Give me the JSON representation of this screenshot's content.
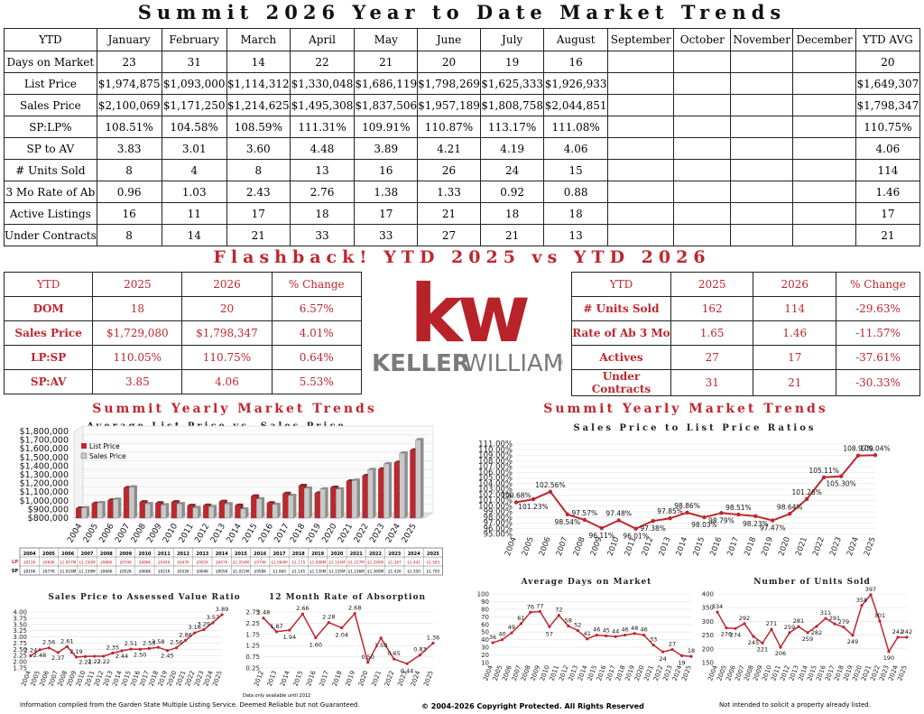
{
  "title": "Summit 2026 Year to Date Market Trends",
  "ytd_table": {
    "header": [
      "YTD",
      "January",
      "February",
      "March",
      "April",
      "May",
      "June",
      "July",
      "August",
      "September",
      "October",
      "November",
      "December",
      "YTD AVG"
    ],
    "rows": [
      [
        "Days on Market",
        "23",
        "31",
        "14",
        "22",
        "21",
        "20",
        "19",
        "16",
        "",
        "",
        "",
        "",
        "20"
      ],
      [
        "List Price",
        "$1,974,875",
        "$1,093,000",
        "$1,114,312",
        "$1,330,048",
        "$1,686,119",
        "$1,798,269",
        "$1,625,333",
        "$1,926,933",
        "",
        "",
        "",
        "",
        "$1,649,307"
      ],
      [
        "Sales Price",
        "$2,100,069",
        "$1,171,250",
        "$1,214,625",
        "$1,495,308",
        "$1,837,506",
        "$1,957,189",
        "$1,808,758",
        "$2,044,851",
        "",
        "",
        "",
        "",
        "$1,798,347"
      ],
      [
        "SP:LP%",
        "108.51%",
        "104.58%",
        "108.59%",
        "111.31%",
        "109.91%",
        "110.87%",
        "113.17%",
        "111.08%",
        "",
        "",
        "",
        "",
        "110.75%"
      ],
      [
        "SP to AV",
        "3.83",
        "3.01",
        "3.60",
        "4.48",
        "3.89",
        "4.21",
        "4.19",
        "4.06",
        "",
        "",
        "",
        "",
        "4.06"
      ],
      [
        "# Units Sold",
        "8",
        "4",
        "8",
        "13",
        "16",
        "26",
        "24",
        "15",
        "",
        "",
        "",
        "",
        "114"
      ],
      [
        "3 Mo Rate of Ab",
        "0.96",
        "1.03",
        "2.43",
        "2.76",
        "1.38",
        "1.33",
        "0.92",
        "0.88",
        "",
        "",
        "",
        "",
        "1.46"
      ],
      [
        "Active Listings",
        "16",
        "11",
        "17",
        "18",
        "17",
        "21",
        "18",
        "18",
        "",
        "",
        "",
        "",
        "17"
      ],
      [
        "Under Contracts",
        "8",
        "14",
        "21",
        "33",
        "33",
        "27",
        "21",
        "13",
        "",
        "",
        "",
        "",
        "21"
      ]
    ]
  },
  "flashback_title": "Flashback!  YTD 2025 vs YTD 2026",
  "compare_left": {
    "header": [
      "YTD",
      "2025",
      "2026",
      "% Change"
    ],
    "rows": [
      [
        "DOM",
        "18",
        "20",
        "6.57%"
      ],
      [
        "Sales Price",
        "$1,729,080",
        "$1,798,347",
        "4.01%"
      ],
      [
        "LP:SP",
        "110.05%",
        "110.75%",
        "0.64%"
      ],
      [
        "SP:AV",
        "3.85",
        "4.06",
        "5.53%"
      ]
    ]
  },
  "compare_right": {
    "header": [
      "YTD",
      "2025",
      "2026",
      "% Change"
    ],
    "rows": [
      [
        "# Units Sold",
        "162",
        "114",
        "-29.63%"
      ],
      [
        "Rate of Ab 3 Mo",
        "1.65",
        "1.46",
        "-11.57%"
      ],
      [
        "Actives",
        "27",
        "17",
        "-37.61%"
      ],
      [
        "Under Contracts",
        "31",
        "21",
        "-30.33%"
      ]
    ]
  },
  "logo": {
    "kw": "kw",
    "brand_left": "KELLER",
    "brand_right": "WILLIAMS",
    "mark": "®"
  },
  "section_left": "Summit Yearly Market Trends",
  "section_right": "Summit Yearly Market Trends",
  "colors": {
    "red": "#c0262d",
    "gray": "#c8c8c8",
    "dark": "#555555"
  },
  "chart_data": [
    {
      "id": "avg-price",
      "type": "bar",
      "title": "Average List Price vs. Sales Price",
      "categories": [
        "2004",
        "2005",
        "2006",
        "2007",
        "2008",
        "2009",
        "2010",
        "2011",
        "2012",
        "2013",
        "2014",
        "2015",
        "2016",
        "2017",
        "2018",
        "2019",
        "2020",
        "2021",
        "2022",
        "2023",
        "2024",
        "2025"
      ],
      "series": [
        {
          "name": "List Price",
          "values": [
            913000,
            969000,
            1007000,
            1150000,
            986000,
            974000,
            986000,
            945000,
            947000,
            991000,
            947000,
            1054000,
            974000,
            1084000,
            1175000,
            1088000,
            1154000,
            1227000,
            1289000,
            1367000,
            1442000,
            1585000
          ]
        },
        {
          "name": "Sales Price",
          "values": [
            919000,
            977000,
            1018000,
            1159000,
            966000,
            952000,
            966000,
            921000,
            932000,
            964000,
            905000,
            1021000,
            958000,
            1060000,
            1145000,
            1135000,
            1135000,
            1236000,
            1360000,
            1426000,
            1550000,
            1705000
          ]
        }
      ],
      "y_tick_labels": [
        "$800,000",
        "$900,000",
        "$1,000,000",
        "$1,100,000",
        "$1,200,000",
        "$1,300,000",
        "$1,400,000",
        "$1,500,000",
        "$1,600,000",
        "$1,700,000",
        "$1,800,000"
      ],
      "ylim": [
        800000,
        1800000
      ],
      "legend": "top-left"
    },
    {
      "id": "sp-lp",
      "type": "line",
      "title": "Sales Price to List Price Ratios",
      "x": [
        "2004",
        "2005",
        "2006",
        "2007",
        "2008",
        "2009",
        "2010",
        "2011",
        "2012",
        "2013",
        "2014",
        "2015",
        "2016",
        "2017",
        "2018",
        "2019",
        "2020",
        "2021",
        "2022",
        "2023",
        "2024",
        "2025"
      ],
      "values": [
        100.68,
        101.23,
        102.56,
        98.54,
        97.57,
        96.11,
        97.48,
        96.01,
        97.38,
        97.85,
        98.86,
        98.03,
        98.79,
        98.51,
        98.23,
        97.47,
        98.64,
        101.26,
        105.11,
        105.3,
        108.97,
        109.04
      ],
      "data_labels": [
        "100.68%",
        "101.23%",
        "102.56%",
        "98.54%",
        "97.57%",
        "96.11%",
        "97.48%",
        "96.01%",
        "97.38%",
        "97.85%",
        "98.86%",
        "98.03%",
        "98.79%",
        "98.51%",
        "98.23%",
        "97.47%",
        "98.64%",
        "101.26%",
        "105.11%",
        "105.30%",
        "108.97%",
        "109.04%"
      ],
      "y_tick_labels": [
        "95.00%",
        "96.00%",
        "97.00%",
        "98.00%",
        "99.00%",
        "100.00%",
        "101.00%",
        "102.00%",
        "103.00%",
        "104.00%",
        "105.00%",
        "106.00%",
        "107.00%",
        "108.00%",
        "109.00%",
        "110.00%",
        "111.00%"
      ],
      "ylim": [
        95,
        111
      ]
    },
    {
      "id": "sp-av",
      "type": "line",
      "title": "Sales Price to Assessed Value Ratio",
      "x": [
        "2004",
        "2005",
        "2006",
        "2007",
        "2008",
        "2009",
        "2010",
        "2011",
        "2012",
        "2013",
        "2014",
        "2015",
        "2016",
        "2017",
        "2018",
        "2019",
        "2020",
        "2021",
        "2022",
        "2023",
        "2024",
        "2025"
      ],
      "values": [
        2.24,
        2.48,
        2.56,
        2.37,
        2.61,
        2.19,
        2.21,
        2.22,
        2.22,
        2.35,
        2.44,
        2.51,
        2.5,
        2.53,
        2.58,
        2.45,
        2.56,
        2.86,
        3.16,
        3.29,
        3.57,
        3.89
      ],
      "data_labels": [
        "2.24",
        "2.48",
        "2.56",
        "2.37",
        "2.61",
        "2.19",
        "2.21",
        "2.22",
        "2.22",
        "2.35",
        "2.44",
        "2.51",
        "2.50",
        "2.53",
        "2.58",
        "2.45",
        "2.56",
        "2.86",
        "3.16",
        "3.29",
        "3.57",
        "3.89"
      ],
      "y_tick_labels": [
        "1.75",
        "2.00",
        "2.25",
        "2.50",
        "2.75",
        "3.00",
        "3.25",
        "3.50",
        "3.75",
        "4.00"
      ],
      "ylim": [
        1.75,
        4.0
      ]
    },
    {
      "id": "rate-ab",
      "type": "line",
      "title": "12 Month Rate of Absorption",
      "x": [
        "2012",
        "2013",
        "2014",
        "2015",
        "2016",
        "2017",
        "2018",
        "2019",
        "2020",
        "2021",
        "2022",
        "2023",
        "2024",
        "2025"
      ],
      "values": [
        2.48,
        1.87,
        1.94,
        2.66,
        1.6,
        2.28,
        2.04,
        2.68,
        0.5,
        1.59,
        0.65,
        0.44,
        0.83,
        1.36
      ],
      "data_labels": [
        "2.48",
        "1.87",
        "1.94",
        "2.66",
        "1.60",
        "2.28",
        "2.04",
        "2.68",
        "0.50",
        "1.59",
        "0.65",
        "0.44",
        "0.83",
        "1.36"
      ],
      "y_tick_labels": [
        "0.25",
        "0.75",
        "1.25",
        "1.75",
        "2.25",
        "2.75"
      ],
      "ylim": [
        0.25,
        2.75
      ],
      "note": "Data only available until 2012"
    },
    {
      "id": "avg-dom",
      "type": "line",
      "title": "Average Days on Market",
      "x": [
        "2004",
        "2005",
        "2006",
        "2007",
        "2008",
        "2009",
        "2010",
        "2011",
        "2012",
        "2013",
        "2014",
        "2015",
        "2016",
        "2017",
        "2018",
        "2019",
        "2020",
        "2021",
        "2022",
        "2023",
        "2024",
        "2025"
      ],
      "values": [
        36,
        40,
        49,
        61,
        76,
        77,
        57,
        72,
        58,
        52,
        41,
        46,
        45,
        44,
        46,
        48,
        46,
        33,
        24,
        27,
        19,
        18
      ],
      "data_labels": [
        "36",
        "40",
        "49",
        "61",
        "76",
        "77",
        "57",
        "72",
        "58",
        "52",
        "41",
        "46",
        "45",
        "44",
        "46",
        "48",
        "46",
        "33",
        "24",
        "27",
        "19",
        "18"
      ],
      "y_tick_labels": [
        "10",
        "20",
        "30",
        "40",
        "50",
        "60",
        "70",
        "80",
        "90",
        "100"
      ],
      "ylim": [
        10,
        100
      ]
    },
    {
      "id": "units-sold",
      "type": "line",
      "title": "Number of Units Sold",
      "x": [
        "2004",
        "2005",
        "2006",
        "2007",
        "2008",
        "2009",
        "2010",
        "2011",
        "2012",
        "2013",
        "2014",
        "2015",
        "2016",
        "2017",
        "2018",
        "2019",
        "2020",
        "2021",
        "2022",
        "2023",
        "2024",
        "2025"
      ],
      "values": [
        334,
        276,
        274,
        292,
        245,
        221,
        271,
        206,
        259,
        281,
        259,
        282,
        311,
        291,
        279,
        249,
        358,
        397,
        301,
        190,
        242,
        242
      ],
      "data_labels": [
        "334",
        "276",
        "274",
        "292",
        "245",
        "221",
        "271",
        "206",
        "259",
        "281",
        "259",
        "282",
        "311",
        "291",
        "279",
        "249",
        "358",
        "397",
        "301",
        "190",
        "242",
        "242"
      ],
      "y_tick_labels": [
        "150",
        "200",
        "250",
        "300",
        "350",
        "400"
      ],
      "ylim": [
        150,
        400
      ]
    }
  ],
  "price_table": {
    "years": [
      "2004",
      "2005",
      "2006",
      "2007",
      "2008",
      "2009",
      "2010",
      "2011",
      "2012",
      "2013",
      "2014",
      "2015",
      "2016",
      "2017",
      "2018",
      "2019",
      "2020",
      "2021",
      "2022",
      "2023",
      "2024",
      "2025"
    ],
    "lp_label": "LP",
    "sp_label": "SP",
    "lp": [
      "$913K",
      "$969K",
      "$1.007M",
      "$1.150M",
      "$986K",
      "$974K",
      "$986K",
      "$945K",
      "$947K",
      "$991K",
      "$947K",
      "$1.054M",
      "$974K",
      "$1.084M",
      "$1.175",
      "$1.088M",
      "$1.154M",
      "$1.227M",
      "$1.289M",
      "$1.367",
      "$1.442",
      "$1.585"
    ],
    "sp": [
      "$919K",
      "$977K",
      "$1.018M",
      "$1.159M",
      "$966K",
      "$952K",
      "$966K",
      "$921K",
      "$932K",
      "$964K",
      "$905K",
      "$1.021M",
      "$958K",
      "$1.060",
      "$1.145",
      "$1.135M",
      "$1.135M",
      "$1.236M",
      "$1.360M",
      "$1.426",
      "$1.550",
      "$1.705"
    ]
  },
  "footer": {
    "left": "Information compiled from the Garden State Multiple Listing Service.  Deemed Reliable but not Guaranteed.",
    "center": "© 2004-2026 Copyright Protected.  All Rights Reserved",
    "right": "Not intended to solicit a property already listed."
  }
}
